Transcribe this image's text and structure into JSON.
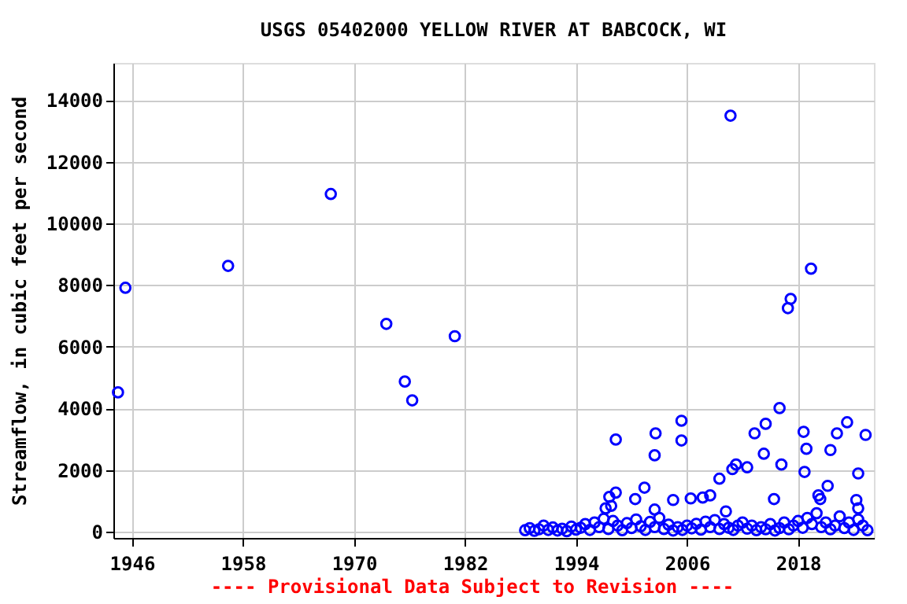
{
  "chart_data": {
    "type": "scatter",
    "title": "USGS 05402000 YELLOW RIVER AT BABCOCK, WI",
    "ylabel": "Streamflow, in cubic feet per second",
    "annotations": [
      "---- Provisional Data Subject to Revision ----"
    ],
    "series": [
      {
        "color": "#0000ff",
        "x": [
          1944.5,
          1945.3,
          1956.4,
          1967.5,
          1973.5,
          1975.5,
          1976.3,
          1980.9,
          2010.7,
          2019.4,
          2017.2,
          2016.9,
          1998.3,
          2002.6,
          2002.5,
          2005.4,
          2005.4,
          2016.0,
          2014.5,
          2013.3,
          2014.3,
          2016.2,
          2018.6,
          2018.9,
          2018.7,
          2023.3,
          2022.2,
          2021.5,
          2025.3,
          2024.5,
          2021.2,
          2020.2,
          2020.4,
          2024.3,
          2024.5,
          2012.5,
          2011.3,
          2010.9,
          2009.5,
          2008.5,
          2007.7,
          2006.4,
          2004.5,
          2015.4,
          2010.2,
          2001.4,
          2000.4,
          1998.3,
          1997.6,
          1997.2,
          1997.8,
          2002.5,
          1988.5,
          1989.0,
          1989.5,
          1990.0,
          1990.5,
          1991.0,
          1991.5,
          1992.0,
          1992.5,
          1993.0,
          1993.5,
          1994.0,
          1994.5,
          1995.0,
          1995.5,
          1996.0,
          1996.5,
          1997.0,
          1997.5,
          1998.0,
          1998.5,
          1999.0,
          1999.5,
          2000.0,
          2000.5,
          2001.0,
          2001.5,
          2002.0,
          2002.5,
          2003.0,
          2003.5,
          2004.0,
          2004.5,
          2005.0,
          2005.5,
          2006.0,
          2006.5,
          2007.0,
          2007.5,
          2008.0,
          2008.5,
          2009.0,
          2009.5,
          2010.0,
          2010.5,
          2011.0,
          2011.5,
          2012.0,
          2012.5,
          2013.0,
          2013.5,
          2014.0,
          2014.5,
          2015.0,
          2015.5,
          2016.0,
          2016.5,
          2017.0,
          2017.5,
          2018.0,
          2018.5,
          2019.0,
          2019.5,
          2020.0,
          2020.5,
          2021.0,
          2021.5,
          2022.0,
          2022.5,
          2023.0,
          2023.5,
          2024.0,
          2024.5,
          2025.0,
          2025.5
        ],
        "values": [
          4520,
          7910,
          8620,
          10950,
          6740,
          4870,
          4260,
          6340,
          13490,
          8530,
          7550,
          7250,
          2990,
          3190,
          2480,
          3600,
          2960,
          4010,
          3500,
          3190,
          2530,
          2180,
          3240,
          2690,
          1940,
          3550,
          3190,
          2650,
          3140,
          1890,
          1490,
          1180,
          1060,
          1030,
          760,
          2090,
          2180,
          2030,
          1720,
          1180,
          1110,
          1080,
          1030,
          1060,
          660,
          1430,
          1060,
          1270,
          1130,
          760,
          840,
          720,
          50,
          120,
          30,
          80,
          200,
          60,
          140,
          40,
          100,
          20,
          170,
          70,
          130,
          250,
          60,
          300,
          150,
          420,
          90,
          350,
          200,
          50,
          280,
          120,
          400,
          180,
          60,
          320,
          150,
          450,
          90,
          230,
          40,
          150,
          60,
          200,
          110,
          260,
          70,
          330,
          150,
          380,
          90,
          250,
          130,
          60,
          200,
          300,
          100,
          200,
          50,
          150,
          80,
          250,
          40,
          120,
          300,
          80,
          200,
          350,
          130,
          450,
          250,
          600,
          150,
          300,
          80,
          200,
          500,
          120,
          300,
          60,
          400,
          200,
          50
        ]
      }
    ],
    "xlim": [
      1944,
      2026.2
    ],
    "ylim": [
      -200,
      15200
    ],
    "xticks": [
      1946,
      1958,
      1970,
      1982,
      1994,
      2006,
      2018
    ],
    "yticks": [
      0,
      2000,
      4000,
      6000,
      8000,
      10000,
      12000,
      14000
    ],
    "grid": true,
    "marker": "circle",
    "legend": false
  }
}
